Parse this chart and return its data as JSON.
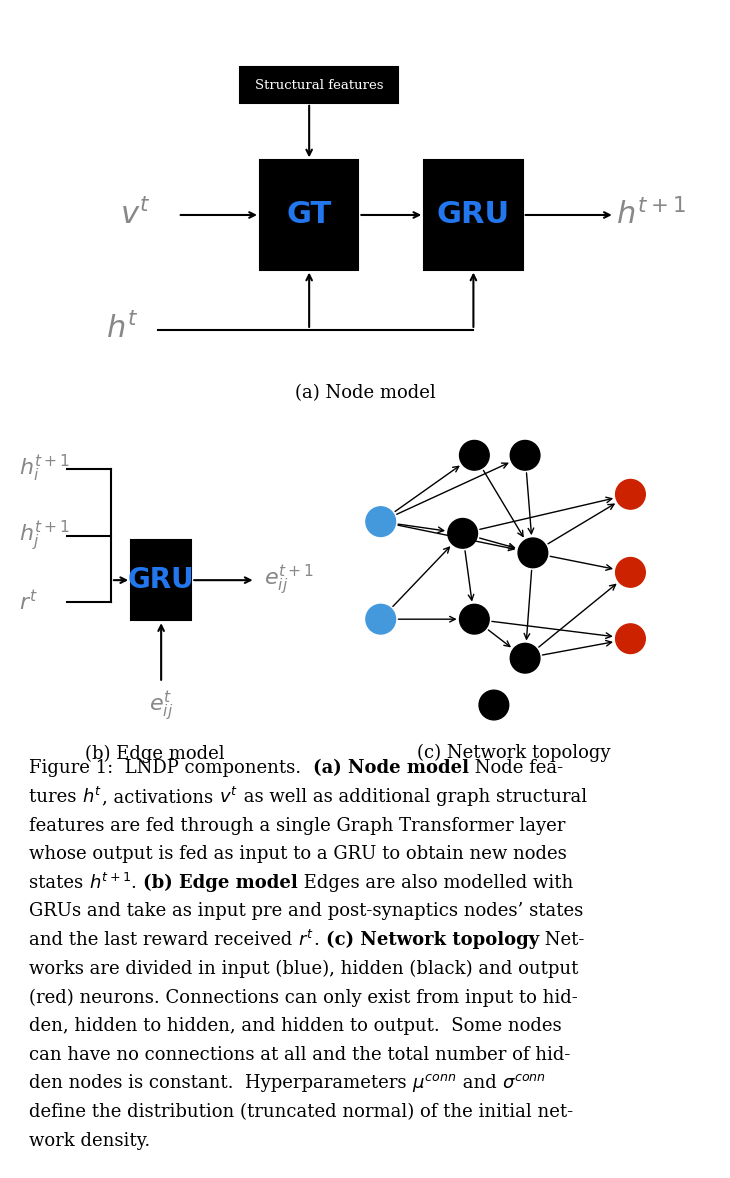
{
  "bg_color": "#ffffff",
  "blue_color": "#2277EE",
  "node_blue": "#4499DD",
  "node_red": "#CC2200",
  "gray_label": "#888888",
  "panel_a_caption": "(a) Node model",
  "panel_b_caption": "(b) Edge model",
  "panel_c_caption": "(c) Network topology",
  "fig_height": 11.78,
  "fig_width": 7.3,
  "dpi": 100
}
